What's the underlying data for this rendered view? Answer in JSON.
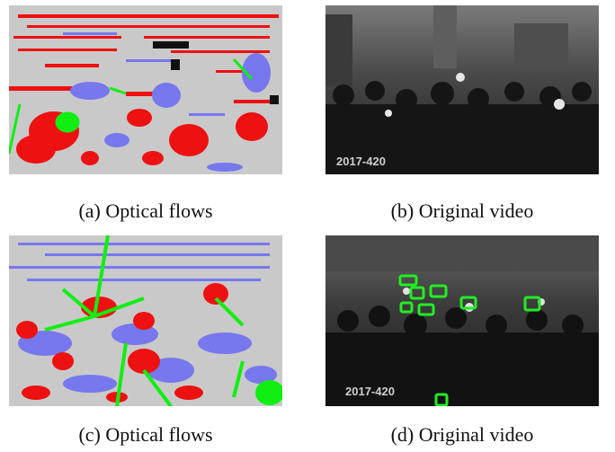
{
  "figure": {
    "panels": [
      {
        "id": "a",
        "caption": "(a) Optical flows",
        "kind": "optical-flow"
      },
      {
        "id": "b",
        "caption": "(b) Original video",
        "kind": "video-frame",
        "overlay_text": "2017-420"
      },
      {
        "id": "c",
        "caption": "(c) Optical flows",
        "kind": "optical-flow"
      },
      {
        "id": "d",
        "caption": "(d) Original video",
        "kind": "video-frame",
        "overlay_text": "2017-420"
      }
    ],
    "colors": {
      "background_gray": "#c9c9c9",
      "flow_red": "#ee1111",
      "flow_blue": "#7777ee",
      "flow_green": "#11ee11",
      "flow_black": "#111111",
      "detection_box": "#22ee22"
    }
  }
}
